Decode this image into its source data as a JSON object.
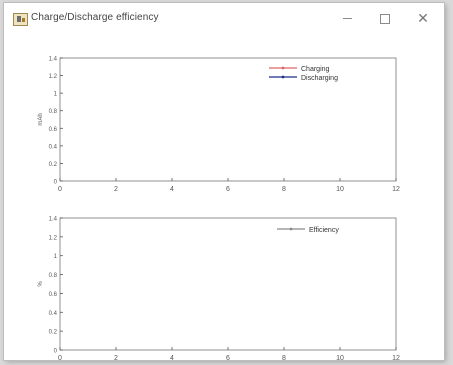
{
  "window": {
    "title": "Charge/Discharge efficiency",
    "minimize_icon": "minimize-icon",
    "maximize_icon": "maximize-icon",
    "close_icon": "close-icon",
    "app_icon": "app-icon"
  },
  "chart_data": [
    {
      "type": "line",
      "title": "",
      "xlabel": "",
      "ylabel": "mAh",
      "xlim": [
        0,
        12
      ],
      "ylim": [
        0,
        1.4
      ],
      "x_ticks": [
        "0",
        "2",
        "4",
        "6",
        "8",
        "10",
        "12"
      ],
      "y_ticks": [
        "0",
        "0.2",
        "0.4",
        "0.6",
        "0.8",
        "1",
        "1.2",
        "1.4"
      ],
      "legend_position": "top-right",
      "series": [
        {
          "name": "Charging",
          "color": "#e06666",
          "x": [],
          "y": []
        },
        {
          "name": "Discharging",
          "color": "#1f2f88",
          "x": [],
          "y": []
        }
      ]
    },
    {
      "type": "line",
      "title": "",
      "xlabel": "",
      "ylabel": "%",
      "xlim": [
        0,
        12
      ],
      "ylim": [
        0,
        1.4
      ],
      "x_ticks": [
        "0",
        "2",
        "4",
        "6",
        "8",
        "10",
        "12"
      ],
      "y_ticks": [
        "0",
        "0.2",
        "0.4",
        "0.6",
        "0.8",
        "1",
        "1.2",
        "1.4"
      ],
      "legend_position": "top-right",
      "series": [
        {
          "name": "Efficiency",
          "color": "#8a8a8a",
          "x": [],
          "y": []
        }
      ]
    }
  ]
}
